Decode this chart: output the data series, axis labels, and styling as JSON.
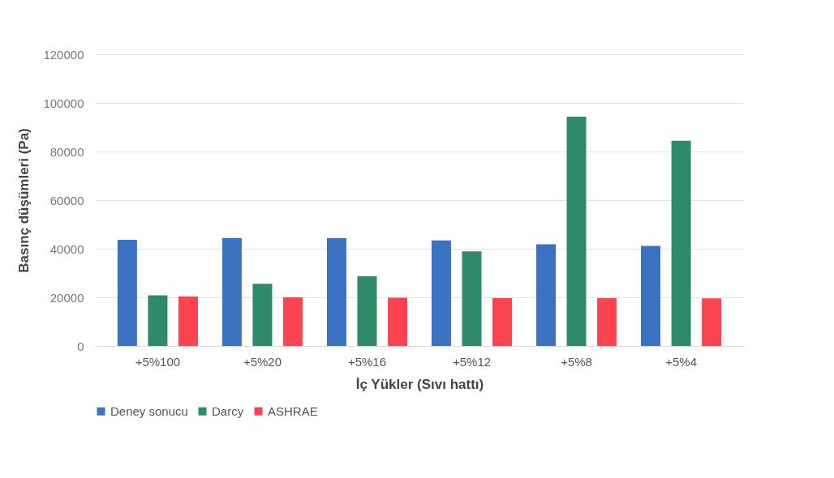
{
  "chart_data": {
    "type": "bar",
    "xlabel": "İç Yükler (Sıvı hattı)",
    "ylabel": "Basınç düşümleri (Pa)",
    "categories": [
      "+5%100",
      "+5%20",
      "+5%16",
      "+5%12",
      "+5%8",
      "+5%4"
    ],
    "series": [
      {
        "name": "Deney sonucu",
        "color": "#3b73c2",
        "values": [
          43700,
          44400,
          44300,
          43400,
          41800,
          41200
        ]
      },
      {
        "name": "Darcy",
        "color": "#2e8a68",
        "values": [
          20800,
          25600,
          28700,
          38900,
          94300,
          84400
        ]
      },
      {
        "name": "ASHRAE",
        "color": "#fc4350",
        "values": [
          20300,
          20000,
          19800,
          19700,
          19700,
          19600
        ]
      }
    ],
    "ylim": [
      0,
      120000
    ],
    "yticks": [
      0,
      20000,
      40000,
      60000,
      80000,
      100000,
      120000
    ],
    "grid": "y",
    "legend": "bottom"
  }
}
